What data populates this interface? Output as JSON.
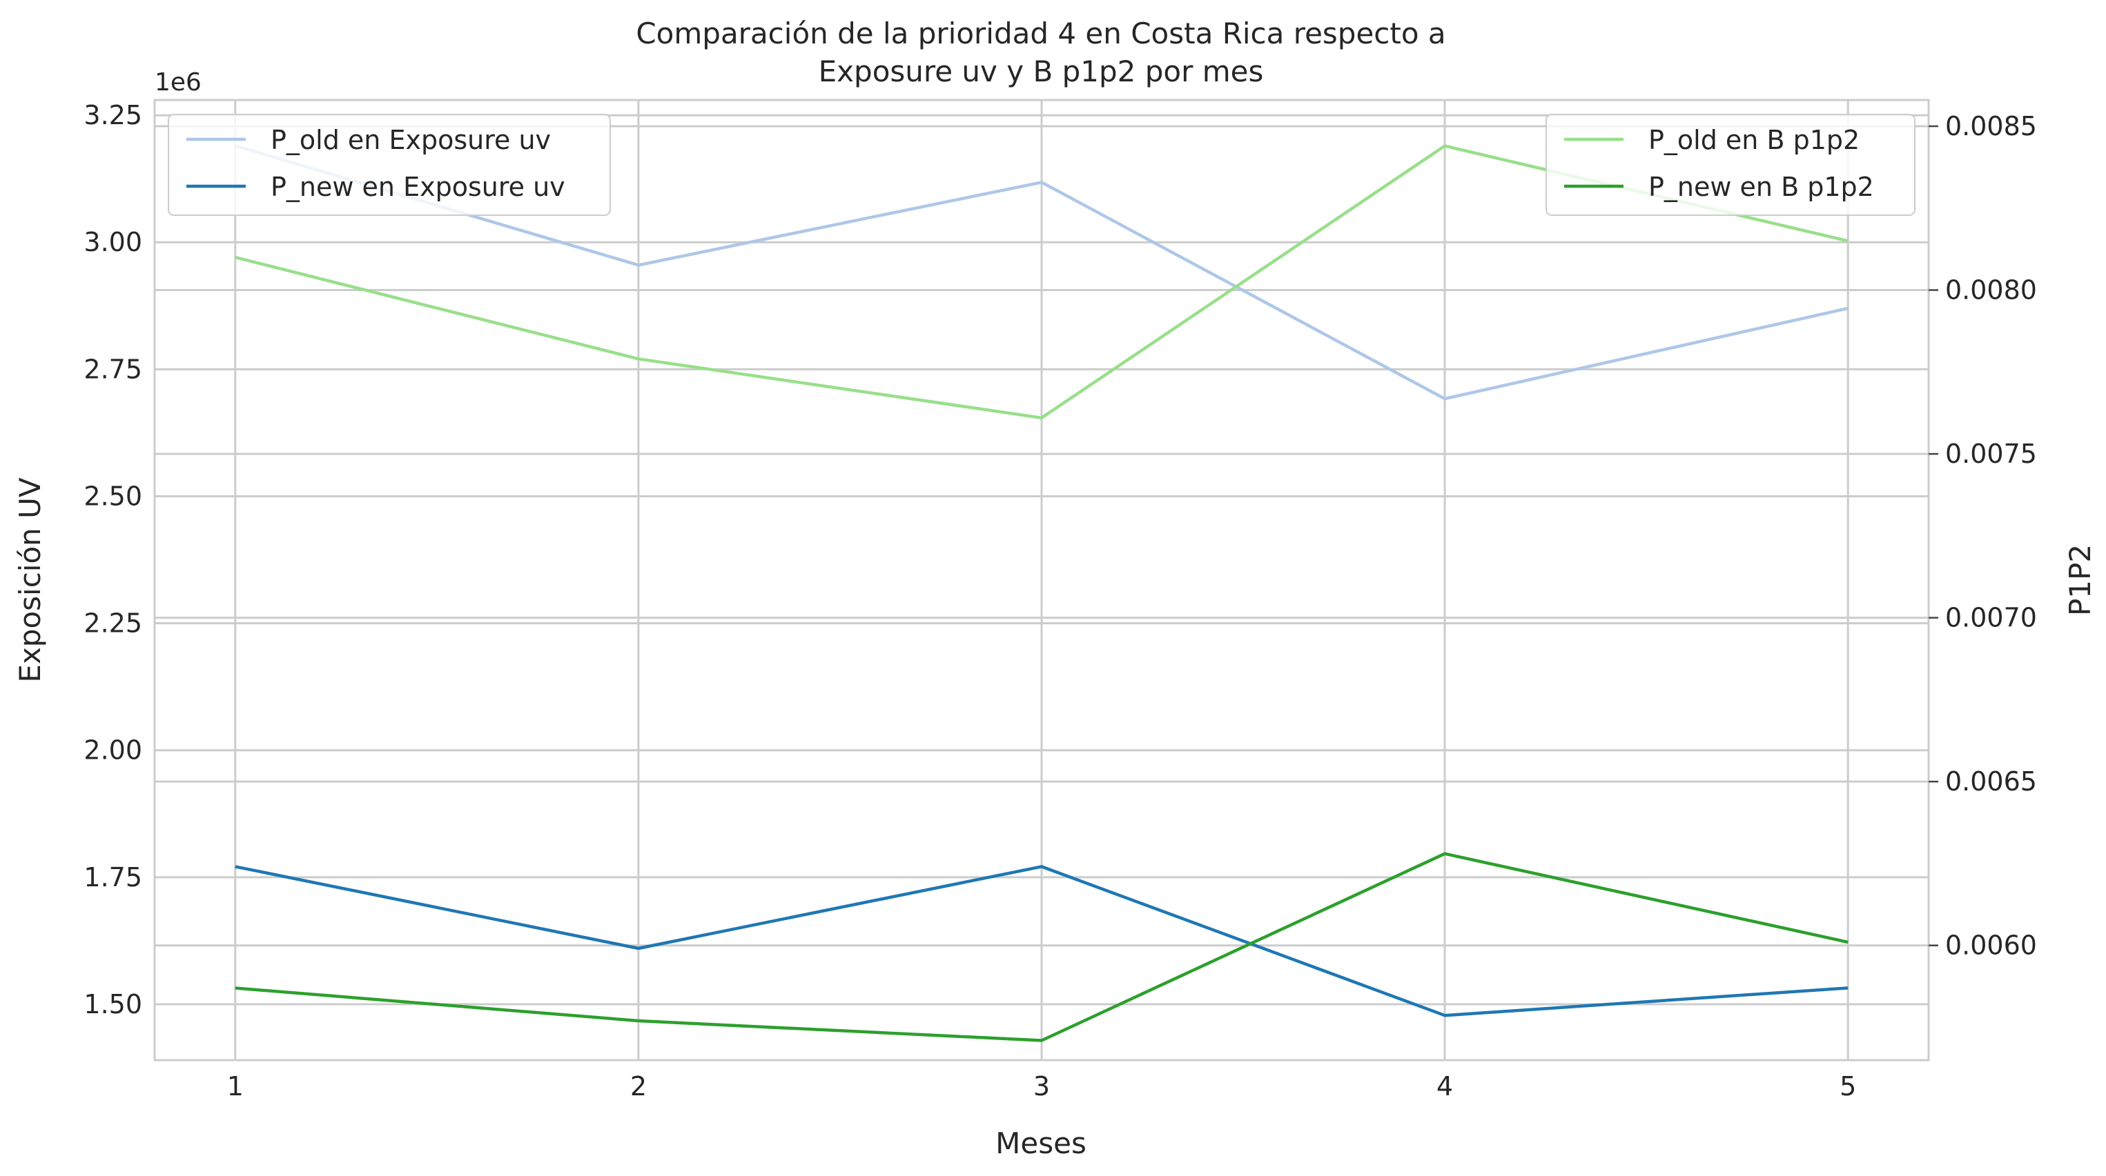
{
  "chart_data": {
    "type": "line",
    "title_lines": [
      "Comparación de la prioridad 4 en Costa Rica respecto a",
      "Exposure uv y B p1p2 por mes"
    ],
    "xlabel": "Meses",
    "ylabel_left": "Exposición UV",
    "ylabel_right": "P1P2",
    "left_offset_text": "1e6",
    "x": [
      1,
      2,
      3,
      4,
      5
    ],
    "xlim": [
      0.8,
      5.2
    ],
    "x_ticks": [
      "1",
      "2",
      "3",
      "4",
      "5"
    ],
    "ylim_left": [
      1.39,
      3.28
    ],
    "y_ticks_left": [
      "1.50",
      "1.75",
      "2.00",
      "2.25",
      "2.50",
      "2.75",
      "3.00",
      "3.25"
    ],
    "y_tick_values_left": [
      1.5,
      1.75,
      2.0,
      2.25,
      2.5,
      2.75,
      3.0,
      3.25
    ],
    "ylim_right": [
      0.00565,
      0.00858
    ],
    "y_ticks_right": [
      "0.0060",
      "0.0065",
      "0.0070",
      "0.0075",
      "0.0080",
      "0.0085"
    ],
    "y_tick_values_right": [
      0.006,
      0.0065,
      0.007,
      0.0075,
      0.008,
      0.0085
    ],
    "grid": true,
    "series_left": [
      {
        "name": "P_old en Exposure uv",
        "color": "#aec7e8",
        "values": [
          3.19,
          2.955,
          3.118,
          2.692,
          2.87
        ]
      },
      {
        "name": "P_new en Exposure uv",
        "color": "#1f77b4",
        "values": [
          1.771,
          1.61,
          1.771,
          1.478,
          1.532
        ]
      }
    ],
    "series_right": [
      {
        "name": "P_old en B p1p2",
        "color": "#98df8a",
        "values": [
          0.0081,
          0.00779,
          0.00761,
          0.00844,
          0.00815
        ]
      },
      {
        "name": "P_new en B p1p2",
        "color": "#2ca02c",
        "values": [
          0.00587,
          0.00577,
          0.00571,
          0.00628,
          0.00601
        ]
      }
    ],
    "legend_left_placement": "upper-left",
    "legend_right_placement": "upper-right"
  }
}
